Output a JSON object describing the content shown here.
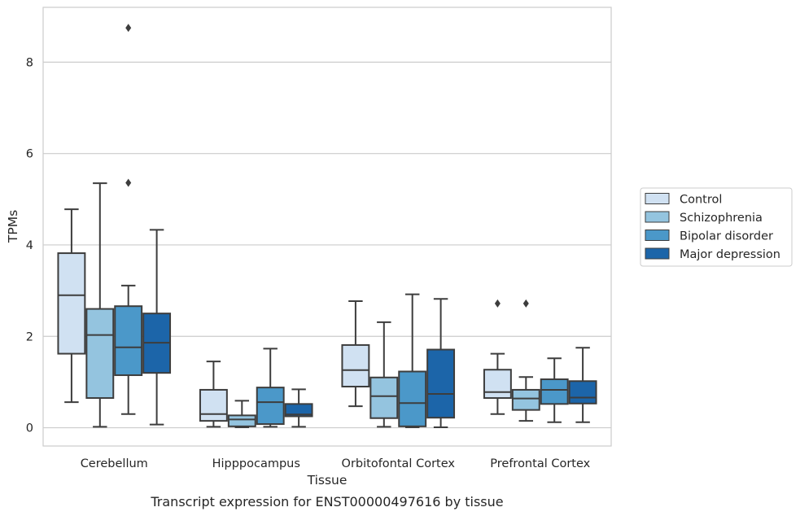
{
  "chart_data": {
    "type": "box",
    "caption": "Transcript expression for ENST00000497616 by tissue",
    "xlabel": "Tissue",
    "ylabel": "TPMs",
    "ylim": [
      -0.4,
      9.2
    ],
    "yticks": [
      "0",
      "2",
      "4",
      "6",
      "8"
    ],
    "categories": [
      "Cerebellum",
      "Hipppocampus",
      "Orbitofontal Cortex",
      "Prefrontal Cortex"
    ],
    "grid": true,
    "legend_position": "right",
    "series": [
      {
        "name": "Control",
        "color": "#d0e1f2",
        "boxes": [
          {
            "min": 0.56,
            "q1": 1.62,
            "median": 2.9,
            "q3": 3.82,
            "max": 4.78,
            "outliers": []
          },
          {
            "min": 0.02,
            "q1": 0.15,
            "median": 0.3,
            "q3": 0.83,
            "max": 1.45,
            "outliers": []
          },
          {
            "min": 0.47,
            "q1": 0.9,
            "median": 1.26,
            "q3": 1.81,
            "max": 2.77,
            "outliers": []
          },
          {
            "min": 0.3,
            "q1": 0.65,
            "median": 0.78,
            "q3": 1.27,
            "max": 1.62,
            "outliers": [
              2.72
            ]
          }
        ]
      },
      {
        "name": "Schizophrenia",
        "color": "#94c4df",
        "boxes": [
          {
            "min": 0.02,
            "q1": 0.65,
            "median": 2.03,
            "q3": 2.6,
            "max": 5.35,
            "outliers": []
          },
          {
            "min": 0.01,
            "q1": 0.03,
            "median": 0.18,
            "q3": 0.27,
            "max": 0.59,
            "outliers": []
          },
          {
            "min": 0.02,
            "q1": 0.21,
            "median": 0.69,
            "q3": 1.1,
            "max": 2.31,
            "outliers": []
          },
          {
            "min": 0.15,
            "q1": 0.39,
            "median": 0.64,
            "q3": 0.83,
            "max": 1.11,
            "outliers": [
              2.72
            ]
          }
        ]
      },
      {
        "name": "Bipolar disorder",
        "color": "#4b98c9",
        "boxes": [
          {
            "min": 0.3,
            "q1": 1.15,
            "median": 1.76,
            "q3": 2.66,
            "max": 3.11,
            "outliers": [
              5.36,
              8.75
            ]
          },
          {
            "min": 0.02,
            "q1": 0.08,
            "median": 0.56,
            "q3": 0.88,
            "max": 1.73,
            "outliers": []
          },
          {
            "min": 0.01,
            "q1": 0.03,
            "median": 0.54,
            "q3": 1.23,
            "max": 2.92,
            "outliers": []
          },
          {
            "min": 0.12,
            "q1": 0.52,
            "median": 0.83,
            "q3": 1.06,
            "max": 1.52,
            "outliers": []
          }
        ]
      },
      {
        "name": "Major depression",
        "color": "#1c65a9",
        "boxes": [
          {
            "min": 0.07,
            "q1": 1.2,
            "median": 1.86,
            "q3": 2.5,
            "max": 4.33,
            "outliers": []
          },
          {
            "min": 0.02,
            "q1": 0.25,
            "median": 0.29,
            "q3": 0.52,
            "max": 0.84,
            "outliers": []
          },
          {
            "min": 0.01,
            "q1": 0.22,
            "median": 0.74,
            "q3": 1.71,
            "max": 2.82,
            "outliers": []
          },
          {
            "min": 0.12,
            "q1": 0.53,
            "median": 0.66,
            "q3": 1.02,
            "max": 1.75,
            "outliers": []
          }
        ]
      }
    ]
  }
}
